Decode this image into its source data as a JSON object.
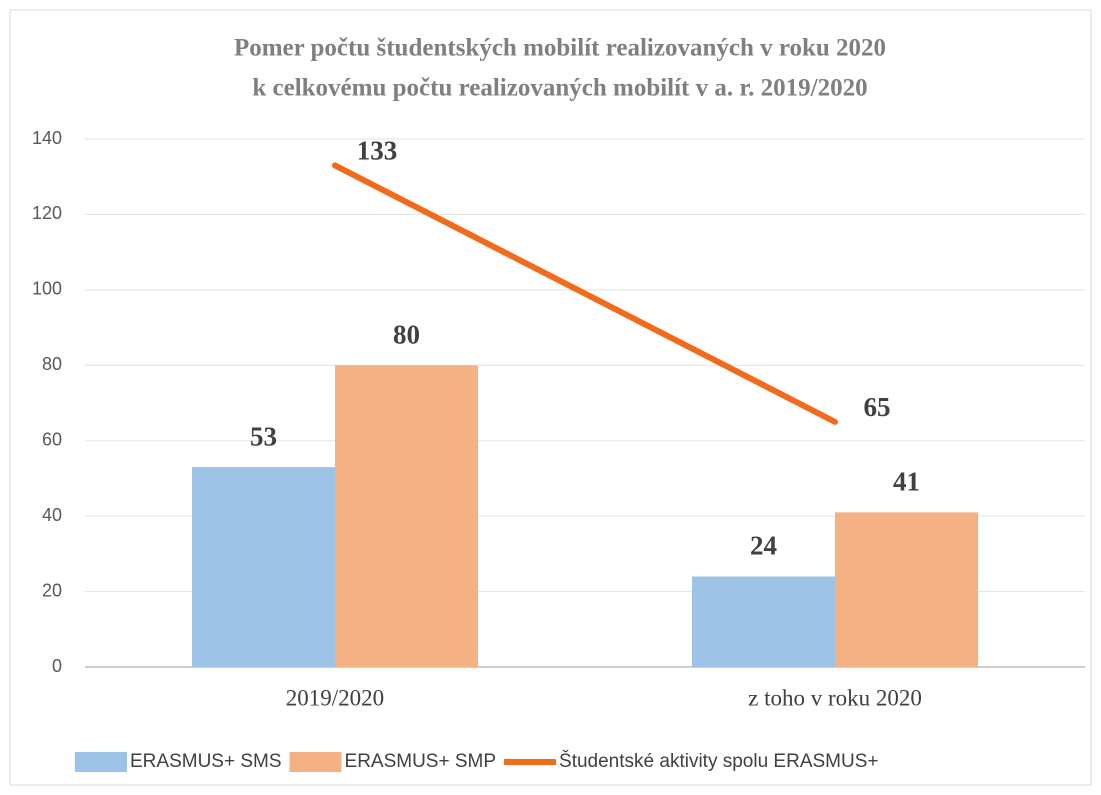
{
  "chart_data": {
    "type": "bar",
    "title": [
      "Pomer počtu študentských mobilít realizovaných v roku 2020",
      "k celkovému počtu realizovaných mobilít v a. r. 2019/2020"
    ],
    "categories": [
      "2019/2020",
      "z toho v roku 2020"
    ],
    "series": [
      {
        "name": "ERASMUS+ SMS",
        "color": "#9dc3e6",
        "values": [
          53,
          24
        ]
      },
      {
        "name": "ERASMUS+ SMP",
        "color": "#f4b183",
        "values": [
          80,
          41
        ]
      },
      {
        "name": "Študentské aktivity spolu ERASMUS+",
        "color": "#f26b1d",
        "type": "line",
        "values": [
          133,
          65
        ]
      }
    ],
    "ylim": [
      0,
      140
    ],
    "yticks": [
      0,
      20,
      40,
      60,
      80,
      100,
      120,
      140
    ],
    "grid": true,
    "legend": "bottom"
  }
}
